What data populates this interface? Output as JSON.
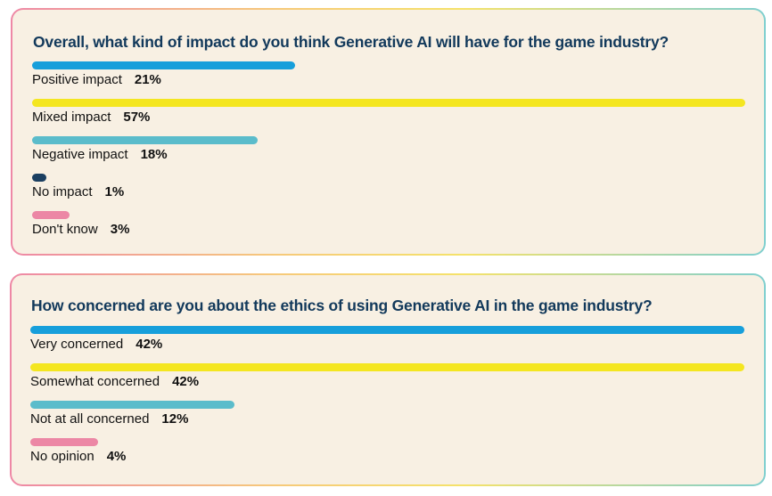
{
  "chart_data": [
    {
      "type": "bar",
      "orientation": "horizontal",
      "title": "Overall, what kind of impact do you think Generative AI will have for the game industry?",
      "categories": [
        "Positive impact",
        "Mixed impact",
        "Negative impact",
        "No impact",
        "Don't know"
      ],
      "values": [
        21,
        57,
        18,
        1,
        3
      ],
      "value_labels": [
        "21%",
        "57%",
        "18%",
        "1%",
        "3%"
      ],
      "colors": [
        "#179fdb",
        "#f4e620",
        "#5bbccb",
        "#1b3f61",
        "#ec87a5"
      ],
      "unit": "%"
    },
    {
      "type": "bar",
      "orientation": "horizontal",
      "title": "How concerned are you about the ethics of using Generative AI in the game industry?",
      "categories": [
        "Very concerned",
        "Somewhat concerned",
        "Not at all concerned",
        "No opinion"
      ],
      "values": [
        42,
        42,
        12,
        4
      ],
      "value_labels": [
        "42%",
        "42%",
        "12%",
        "4%"
      ],
      "colors": [
        "#179fdb",
        "#f4e620",
        "#5bbccb",
        "#ec87a5"
      ],
      "unit": "%"
    }
  ]
}
